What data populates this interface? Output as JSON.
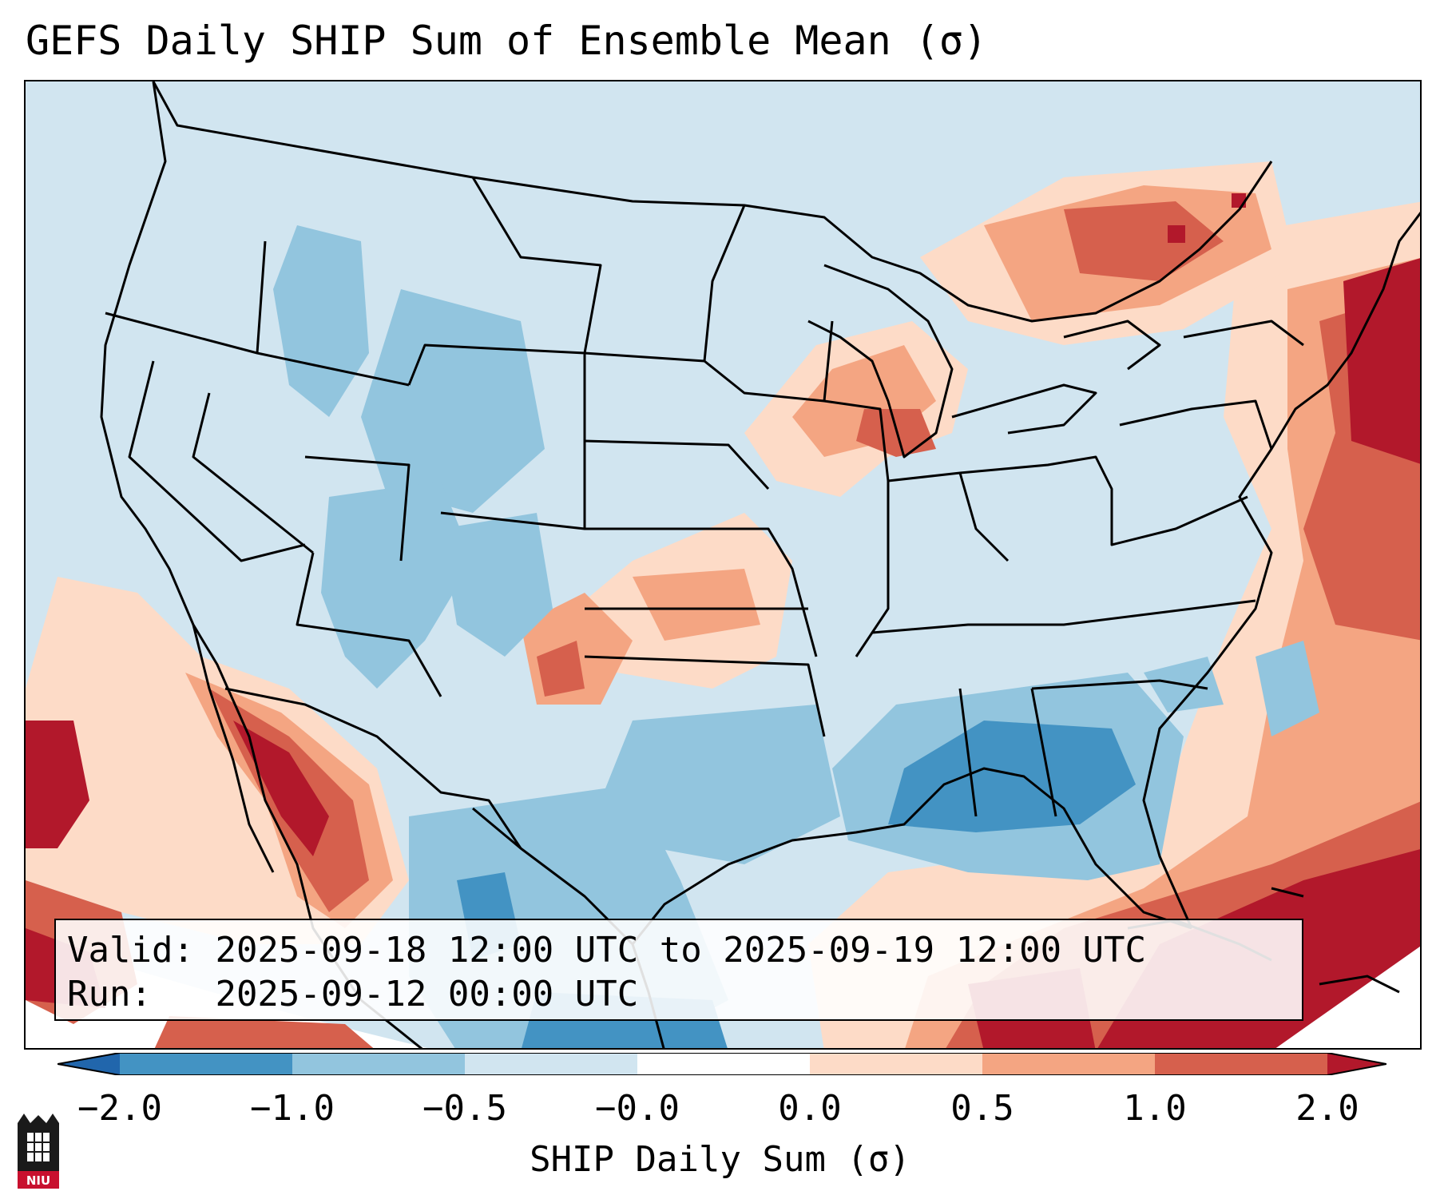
{
  "title": "GEFS Daily SHIP Sum of Ensemble Mean (σ)",
  "info": {
    "valid_label": "Valid:",
    "valid_value": "2025-09-18 12:00 UTC to 2025-09-19 12:00 UTC",
    "run_label": "Run:",
    "run_value": "2025-09-12 00:00 UTC"
  },
  "colorbar": {
    "label": "SHIP Daily Sum (σ)",
    "ticks": [
      "−2.0",
      "−1.0",
      "−0.5",
      "−0.0",
      "0.0",
      "0.5",
      "1.0",
      "2.0"
    ],
    "colors": [
      "#4393c3",
      "#92c5de",
      "#d1e5f0",
      "#ffffff",
      "#fddbc7",
      "#f4a582",
      "#d6604d"
    ],
    "under_color": "#2166ac",
    "over_color": "#b2182b"
  },
  "logo": {
    "icon": "niu-logo",
    "text": "NIU"
  }
}
